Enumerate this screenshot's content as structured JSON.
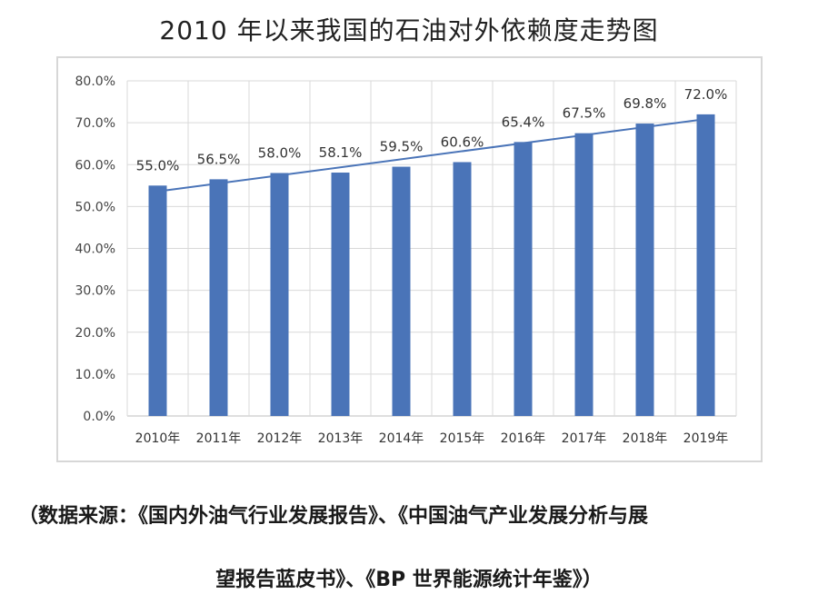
{
  "chart_data": {
    "type": "bar",
    "title": "2010 年以来我国的石油对外依赖度走势图",
    "categories": [
      "2010年",
      "2011年",
      "2012年",
      "2013年",
      "2014年",
      "2015年",
      "2016年",
      "2017年",
      "2018年",
      "2019年"
    ],
    "values": [
      55.0,
      56.5,
      58.0,
      58.1,
      59.5,
      60.6,
      65.4,
      67.5,
      69.8,
      72.0
    ],
    "data_labels": [
      "55.0%",
      "56.5%",
      "58.0%",
      "58.1%",
      "59.5%",
      "60.6%",
      "65.4%",
      "67.5%",
      "69.8%",
      "72.0%"
    ],
    "ylim": [
      0,
      80
    ],
    "yticks": [
      "0.0%",
      "10.0%",
      "20.0%",
      "30.0%",
      "40.0%",
      "50.0%",
      "60.0%",
      "70.0%",
      "80.0%"
    ],
    "trendline": true,
    "grid": true,
    "colors": {
      "bar": "#4a74b8",
      "trend": "#4a74b8",
      "grid": "#d9d9d9"
    }
  },
  "source_note": {
    "line1": "（数据来源：《国内外油气行业发展报告》、《中国油气产业发展分析与展",
    "line2": "望报告蓝皮书》、《BP 世界能源统计年鉴》）"
  }
}
